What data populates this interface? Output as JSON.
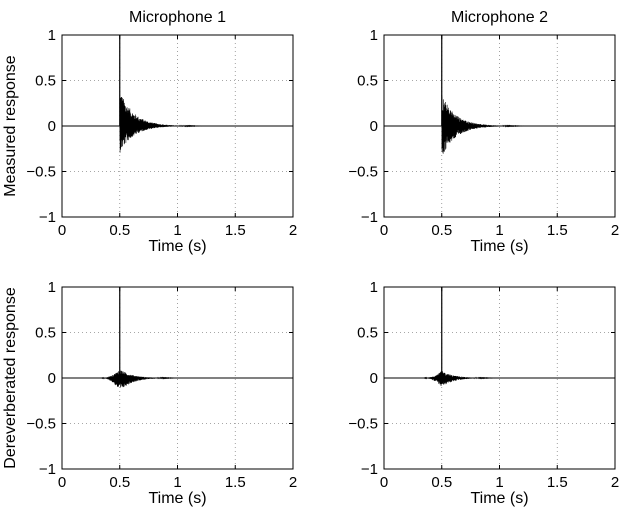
{
  "chart_data": [
    {
      "type": "line",
      "title": "Microphone 1",
      "xlabel": "Time (s)",
      "ylabel": "Measured response",
      "xlim": [
        0,
        2
      ],
      "ylim": [
        -1,
        1
      ],
      "xticks": [
        0,
        0.5,
        1,
        1.5,
        2
      ],
      "yticks": [
        -1,
        -0.5,
        0,
        0.5,
        1
      ],
      "xtick_labels": [
        "0",
        "0.5",
        "1",
        "1.5",
        "2"
      ],
      "ytick_labels": [
        "−1",
        "−0.5",
        "0",
        "0.5",
        "1"
      ],
      "grid": true,
      "impulse": {
        "x": 0.5,
        "y": 1
      },
      "envelope": {
        "start": 0.5,
        "peak_pos": 0.4,
        "peak_neg": -0.3,
        "decay_s": 0.12,
        "pre_rise_s": 0
      }
    },
    {
      "type": "line",
      "title": "Microphone 2",
      "xlabel": "Time (s)",
      "ylabel": "",
      "xlim": [
        0,
        2
      ],
      "ylim": [
        -1,
        1
      ],
      "xticks": [
        0,
        0.5,
        1,
        1.5,
        2
      ],
      "yticks": [
        -1,
        -0.5,
        0,
        0.5,
        1
      ],
      "xtick_labels": [
        "0",
        "0.5",
        "1",
        "1.5",
        "2"
      ],
      "ytick_labels": [
        "−1",
        "−0.5",
        "0",
        "0.5",
        "1"
      ],
      "grid": true,
      "impulse": {
        "x": 0.5,
        "y": 1
      },
      "envelope": {
        "start": 0.5,
        "peak_pos": 0.35,
        "peak_neg": -0.35,
        "decay_s": 0.12,
        "pre_rise_s": 0
      }
    },
    {
      "type": "line",
      "title": "",
      "xlabel": "Time (s)",
      "ylabel": "Dereverberated response",
      "xlim": [
        0,
        2
      ],
      "ylim": [
        -1,
        1
      ],
      "xticks": [
        0,
        0.5,
        1,
        1.5,
        2
      ],
      "yticks": [
        -1,
        -0.5,
        0,
        0.5,
        1
      ],
      "xtick_labels": [
        "0",
        "0.5",
        "1",
        "1.5",
        "2"
      ],
      "ytick_labels": [
        "−1",
        "−0.5",
        "0",
        "0.5",
        "1"
      ],
      "grid": true,
      "impulse": {
        "x": 0.5,
        "y": 1
      },
      "envelope": {
        "start": 0.5,
        "peak_pos": 0.1,
        "peak_neg": -0.15,
        "decay_s": 0.1,
        "pre_rise_s": 0.2
      }
    },
    {
      "type": "line",
      "title": "",
      "xlabel": "Time (s)",
      "ylabel": "",
      "xlim": [
        0,
        2
      ],
      "ylim": [
        -1,
        1
      ],
      "xticks": [
        0,
        0.5,
        1,
        1.5,
        2
      ],
      "yticks": [
        -1,
        -0.5,
        0,
        0.5,
        1
      ],
      "xtick_labels": [
        "0",
        "0.5",
        "1",
        "1.5",
        "2"
      ],
      "ytick_labels": [
        "−1",
        "−0.5",
        "0",
        "0.5",
        "1"
      ],
      "grid": true,
      "impulse": {
        "x": 0.5,
        "y": 1
      },
      "envelope": {
        "start": 0.5,
        "peak_pos": 0.08,
        "peak_neg": -0.1,
        "decay_s": 0.1,
        "pre_rise_s": 0.2
      }
    }
  ]
}
